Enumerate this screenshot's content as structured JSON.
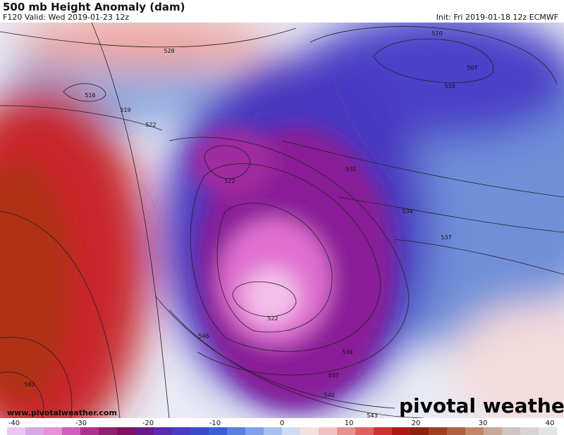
{
  "header": {
    "title": "500 mb Height Anomaly (dam)",
    "subtitle": "F120 Valid: Wed 2019-01-23 12z",
    "init": "Init: Fri 2019-01-18 12z ECMWF"
  },
  "contour_labels": [
    "528",
    "516",
    "519",
    "522",
    "510",
    "507",
    "510",
    "522",
    "531",
    "534",
    "537",
    "522",
    "546",
    "534",
    "537",
    "540",
    "543",
    "582"
  ],
  "watermark": "www.pivotalweather.com",
  "logo": "pivotal weather",
  "colorbar": {
    "labels": [
      "-40",
      "-30",
      "-20",
      "-10",
      "0",
      "10",
      "20",
      "30",
      "40"
    ]
  }
}
